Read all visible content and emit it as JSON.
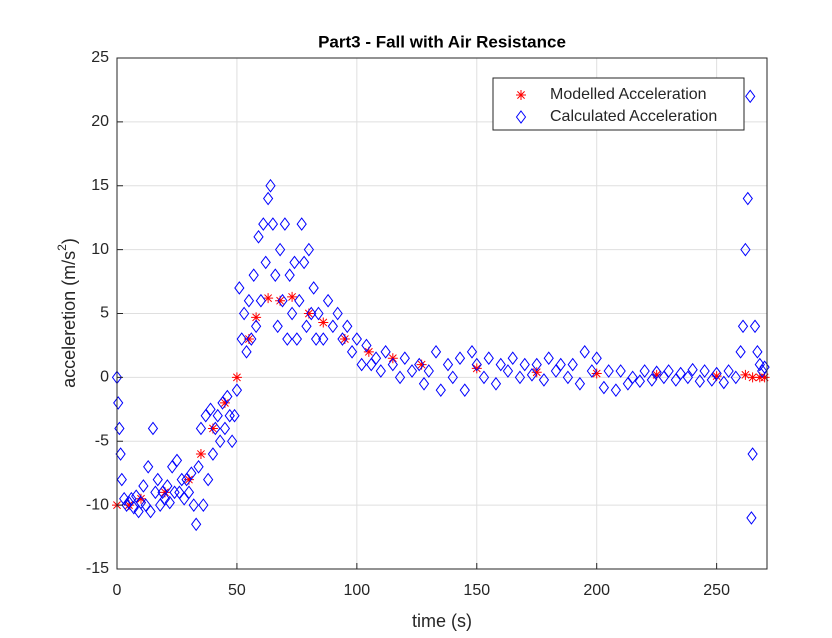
{
  "chart_data": {
    "type": "scatter",
    "title": "Part3 - Fall with Air Resistance",
    "xlabel": "time (s)",
    "ylabel": [
      "acceleretion (m/s",
      "2",
      ")"
    ],
    "xlim": [
      0,
      271
    ],
    "ylim": [
      -15,
      25
    ],
    "xticks": [
      0,
      50,
      100,
      150,
      200,
      250
    ],
    "yticks": [
      -15,
      -10,
      -5,
      0,
      5,
      10,
      15,
      20,
      25
    ],
    "grid": true,
    "legend": "upper right",
    "series": [
      {
        "name": "Modelled Acceleration",
        "color": "#ff0000",
        "marker": "asterisk",
        "x": [
          0,
          5,
          10,
          20,
          30,
          35,
          40,
          45,
          50,
          55,
          58,
          63,
          68,
          73,
          80,
          86,
          95,
          105,
          115,
          127,
          150,
          175,
          200,
          225,
          250,
          262,
          265,
          268,
          270
        ],
        "values": [
          -10,
          -10,
          -9.5,
          -9,
          -8,
          -6,
          -4,
          -2,
          0,
          3,
          4.7,
          6.2,
          6,
          6.3,
          5,
          4.3,
          3,
          2,
          1.5,
          1,
          0.7,
          0.4,
          0.3,
          0.2,
          0.1,
          0.2,
          0,
          0,
          0
        ]
      },
      {
        "name": "Calculated Acceleration",
        "color": "#0000ff",
        "marker": "diamond",
        "x": [
          0,
          0.5,
          1,
          1.5,
          2,
          3,
          4,
          5,
          6,
          7,
          8,
          9,
          10,
          11,
          12,
          13,
          14,
          15,
          16,
          17,
          18,
          19,
          20,
          21,
          22,
          23,
          24,
          25,
          26,
          27,
          28,
          29,
          30,
          31,
          32,
          33,
          34,
          35,
          36,
          37,
          38,
          39,
          40,
          41,
          42,
          43,
          44,
          45,
          46,
          47,
          48,
          49,
          50,
          51,
          52,
          53,
          54,
          55,
          56,
          57,
          58,
          59,
          60,
          61,
          62,
          63,
          64,
          65,
          66,
          67,
          68,
          69,
          70,
          71,
          72,
          73,
          74,
          75,
          76,
          77,
          78,
          79,
          80,
          81,
          82,
          83,
          84,
          86,
          88,
          90,
          92,
          94,
          96,
          98,
          100,
          102,
          104,
          106,
          108,
          110,
          112,
          115,
          118,
          120,
          123,
          126,
          128,
          130,
          133,
          135,
          138,
          140,
          143,
          145,
          148,
          150,
          153,
          155,
          158,
          160,
          163,
          165,
          168,
          170,
          173,
          175,
          178,
          180,
          183,
          185,
          188,
          190,
          193,
          195,
          198,
          200,
          203,
          205,
          208,
          210,
          213,
          215,
          218,
          220,
          223,
          225,
          228,
          230,
          233,
          235,
          238,
          240,
          243,
          245,
          248,
          250,
          253,
          255,
          258,
          260,
          261,
          262,
          263,
          264,
          264.5,
          265,
          266,
          267,
          268,
          269,
          270
        ],
        "values": [
          0,
          -2,
          -4,
          -6,
          -8,
          -9.5,
          -10,
          -9.8,
          -9.5,
          -10.2,
          -9.3,
          -10.5,
          -9.8,
          -8.5,
          -10,
          -7,
          -10.5,
          -4,
          -9,
          -8,
          -10,
          -9,
          -9.5,
          -8.5,
          -9.8,
          -7,
          -9,
          -6.5,
          -9,
          -8,
          -9.5,
          -8,
          -9,
          -7.5,
          -10,
          -11.5,
          -7,
          -4,
          -10,
          -3,
          -8,
          -2.5,
          -6,
          -4,
          -3,
          -5,
          -2,
          -4,
          -1.5,
          -3,
          -5,
          -3,
          -1,
          7,
          3,
          5,
          2,
          6,
          3,
          8,
          4,
          11,
          6,
          12,
          9,
          14,
          15,
          12,
          8,
          4,
          10,
          6,
          12,
          3,
          8,
          5,
          9,
          3,
          6,
          12,
          9,
          4,
          10,
          5,
          7,
          3,
          5,
          3,
          6,
          4,
          5,
          3,
          4,
          2,
          3,
          1,
          2.5,
          1,
          1.5,
          0.5,
          2,
          1,
          0,
          1.5,
          0.5,
          1,
          -0.5,
          0.5,
          2,
          -1,
          1,
          0,
          1.5,
          -1,
          2,
          1,
          0,
          1.5,
          -0.5,
          1,
          0.5,
          1.5,
          0,
          1,
          0.2,
          1,
          -0.2,
          1.5,
          0.5,
          1,
          0,
          1,
          -0.5,
          2,
          0.5,
          1.5,
          -0.8,
          0.5,
          -1,
          0.5,
          -0.5,
          0,
          -0.3,
          0.5,
          -0.2,
          0.4,
          0,
          0.5,
          -0.2,
          0.3,
          0,
          0.6,
          -0.3,
          0.5,
          -0.2,
          0.3,
          -0.4,
          0.5,
          0,
          2,
          4,
          10,
          14,
          22,
          -11,
          -6,
          4,
          2,
          1,
          0.5,
          0.8
        ]
      }
    ]
  }
}
